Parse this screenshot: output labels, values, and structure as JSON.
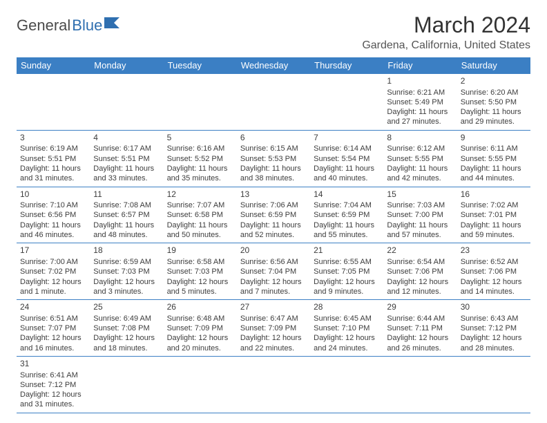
{
  "logo": {
    "part1": "General",
    "part2": "Blue"
  },
  "title": "March 2024",
  "location": "Gardena, California, United States",
  "colors": {
    "header_bg": "#3b7fc4",
    "header_fg": "#ffffff",
    "cell_border": "#3b7fc4",
    "text": "#3c3c3c",
    "logo_dark": "#4a4a4a",
    "logo_blue": "#2f6fb0"
  },
  "dayHeaders": [
    "Sunday",
    "Monday",
    "Tuesday",
    "Wednesday",
    "Thursday",
    "Friday",
    "Saturday"
  ],
  "weeks": [
    [
      null,
      null,
      null,
      null,
      null,
      {
        "n": "1",
        "sr": "6:21 AM",
        "ss": "5:49 PM",
        "dl": "11 hours and 27 minutes."
      },
      {
        "n": "2",
        "sr": "6:20 AM",
        "ss": "5:50 PM",
        "dl": "11 hours and 29 minutes."
      }
    ],
    [
      {
        "n": "3",
        "sr": "6:19 AM",
        "ss": "5:51 PM",
        "dl": "11 hours and 31 minutes."
      },
      {
        "n": "4",
        "sr": "6:17 AM",
        "ss": "5:51 PM",
        "dl": "11 hours and 33 minutes."
      },
      {
        "n": "5",
        "sr": "6:16 AM",
        "ss": "5:52 PM",
        "dl": "11 hours and 35 minutes."
      },
      {
        "n": "6",
        "sr": "6:15 AM",
        "ss": "5:53 PM",
        "dl": "11 hours and 38 minutes."
      },
      {
        "n": "7",
        "sr": "6:14 AM",
        "ss": "5:54 PM",
        "dl": "11 hours and 40 minutes."
      },
      {
        "n": "8",
        "sr": "6:12 AM",
        "ss": "5:55 PM",
        "dl": "11 hours and 42 minutes."
      },
      {
        "n": "9",
        "sr": "6:11 AM",
        "ss": "5:55 PM",
        "dl": "11 hours and 44 minutes."
      }
    ],
    [
      {
        "n": "10",
        "sr": "7:10 AM",
        "ss": "6:56 PM",
        "dl": "11 hours and 46 minutes."
      },
      {
        "n": "11",
        "sr": "7:08 AM",
        "ss": "6:57 PM",
        "dl": "11 hours and 48 minutes."
      },
      {
        "n": "12",
        "sr": "7:07 AM",
        "ss": "6:58 PM",
        "dl": "11 hours and 50 minutes."
      },
      {
        "n": "13",
        "sr": "7:06 AM",
        "ss": "6:59 PM",
        "dl": "11 hours and 52 minutes."
      },
      {
        "n": "14",
        "sr": "7:04 AM",
        "ss": "6:59 PM",
        "dl": "11 hours and 55 minutes."
      },
      {
        "n": "15",
        "sr": "7:03 AM",
        "ss": "7:00 PM",
        "dl": "11 hours and 57 minutes."
      },
      {
        "n": "16",
        "sr": "7:02 AM",
        "ss": "7:01 PM",
        "dl": "11 hours and 59 minutes."
      }
    ],
    [
      {
        "n": "17",
        "sr": "7:00 AM",
        "ss": "7:02 PM",
        "dl": "12 hours and 1 minute."
      },
      {
        "n": "18",
        "sr": "6:59 AM",
        "ss": "7:03 PM",
        "dl": "12 hours and 3 minutes."
      },
      {
        "n": "19",
        "sr": "6:58 AM",
        "ss": "7:03 PM",
        "dl": "12 hours and 5 minutes."
      },
      {
        "n": "20",
        "sr": "6:56 AM",
        "ss": "7:04 PM",
        "dl": "12 hours and 7 minutes."
      },
      {
        "n": "21",
        "sr": "6:55 AM",
        "ss": "7:05 PM",
        "dl": "12 hours and 9 minutes."
      },
      {
        "n": "22",
        "sr": "6:54 AM",
        "ss": "7:06 PM",
        "dl": "12 hours and 12 minutes."
      },
      {
        "n": "23",
        "sr": "6:52 AM",
        "ss": "7:06 PM",
        "dl": "12 hours and 14 minutes."
      }
    ],
    [
      {
        "n": "24",
        "sr": "6:51 AM",
        "ss": "7:07 PM",
        "dl": "12 hours and 16 minutes."
      },
      {
        "n": "25",
        "sr": "6:49 AM",
        "ss": "7:08 PM",
        "dl": "12 hours and 18 minutes."
      },
      {
        "n": "26",
        "sr": "6:48 AM",
        "ss": "7:09 PM",
        "dl": "12 hours and 20 minutes."
      },
      {
        "n": "27",
        "sr": "6:47 AM",
        "ss": "7:09 PM",
        "dl": "12 hours and 22 minutes."
      },
      {
        "n": "28",
        "sr": "6:45 AM",
        "ss": "7:10 PM",
        "dl": "12 hours and 24 minutes."
      },
      {
        "n": "29",
        "sr": "6:44 AM",
        "ss": "7:11 PM",
        "dl": "12 hours and 26 minutes."
      },
      {
        "n": "30",
        "sr": "6:43 AM",
        "ss": "7:12 PM",
        "dl": "12 hours and 28 minutes."
      }
    ],
    [
      {
        "n": "31",
        "sr": "6:41 AM",
        "ss": "7:12 PM",
        "dl": "12 hours and 31 minutes."
      },
      null,
      null,
      null,
      null,
      null,
      null
    ]
  ],
  "labels": {
    "sunrise": "Sunrise:",
    "sunset": "Sunset:",
    "daylight": "Daylight:"
  }
}
